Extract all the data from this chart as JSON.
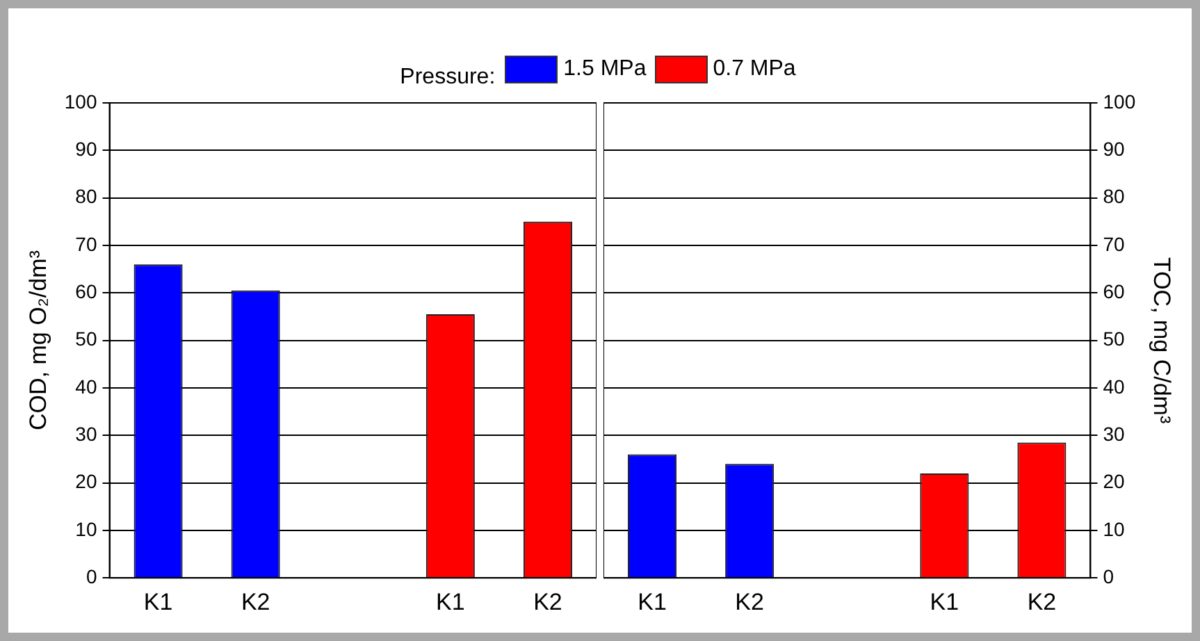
{
  "chart_data": [
    {
      "type": "bar",
      "legend": "top",
      "legend_title": "Pressure:",
      "ylabel": "COD, mg O₂/dm³",
      "categories": [
        "K1",
        "K2",
        null,
        "K1",
        "K2"
      ],
      "ylim": [
        0,
        100
      ],
      "yticks": [
        0,
        10,
        20,
        30,
        40,
        50,
        60,
        70,
        80,
        90,
        100
      ],
      "grid": "y",
      "series": [
        {
          "name": "1.5 MPa",
          "color": "#0000ff",
          "values": [
            66,
            60.5,
            null,
            null,
            null
          ]
        },
        {
          "name": "0.7 MPa",
          "color": "#ff0000",
          "values": [
            null,
            null,
            null,
            55.5,
            75
          ]
        }
      ]
    },
    {
      "type": "bar",
      "y2label": "TOC, mg C/dm³",
      "categories": [
        "K1",
        "K2",
        null,
        "K1",
        "K2"
      ],
      "y2lim": [
        0,
        100
      ],
      "y2ticks": [
        0,
        10,
        20,
        30,
        40,
        50,
        60,
        70,
        80,
        90,
        100
      ],
      "grid": "y",
      "series": [
        {
          "color": "#0000ff",
          "axis": "y2",
          "values": [
            26,
            24,
            null,
            null,
            null
          ]
        },
        {
          "color": "#ff0000",
          "axis": "y2",
          "values": [
            null,
            null,
            null,
            22,
            28.5
          ]
        }
      ]
    }
  ]
}
